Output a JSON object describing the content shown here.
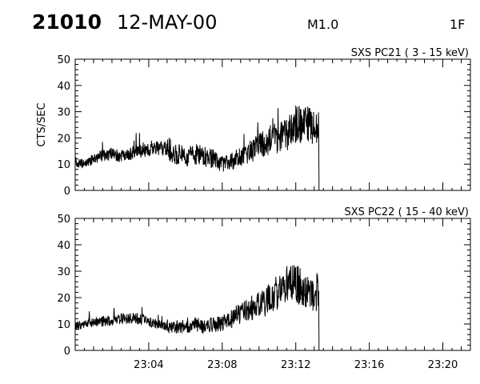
{
  "header": {
    "event_id": "21010",
    "date": "12-MAY-00",
    "flare_class": "M1.0",
    "frame": "1F"
  },
  "chart_data": [
    {
      "type": "line",
      "title": "SXS PC21  (  3 - 15 keV)",
      "ylabel": "CTS/SEC",
      "xlabel": "",
      "ylim": [
        0,
        50
      ],
      "yticks": [
        0,
        10,
        20,
        30,
        40,
        50
      ],
      "xlim": [
        "23:00:00",
        "23:21:30"
      ],
      "xticks": [
        "23:04",
        "23:08",
        "23:12",
        "23:16",
        "23:20"
      ],
      "series": [
        {
          "points": [
            [
              "23:00:00",
              11
            ],
            [
              "23:00:30",
              10
            ],
            [
              "23:01:00",
              12
            ],
            [
              "23:01:30",
              13
            ],
            [
              "23:02:00",
              14
            ],
            [
              "23:02:30",
              13
            ],
            [
              "23:03:00",
              14
            ],
            [
              "23:03:30",
              15
            ],
            [
              "23:04:00",
              15
            ],
            [
              "23:04:30",
              16
            ],
            [
              "23:05:00",
              16
            ],
            [
              "23:05:30",
              14
            ],
            [
              "23:06:00",
              13
            ],
            [
              "23:06:30",
              14
            ],
            [
              "23:07:00",
              13
            ],
            [
              "23:07:30",
              12
            ],
            [
              "23:08:00",
              10
            ],
            [
              "23:08:30",
              11
            ],
            [
              "23:09:00",
              13
            ],
            [
              "23:09:30",
              15
            ],
            [
              "23:10:00",
              17
            ],
            [
              "23:10:30",
              19
            ],
            [
              "23:11:00",
              20
            ],
            [
              "23:11:30",
              21
            ],
            [
              "23:12:00",
              25
            ],
            [
              "23:12:30",
              25
            ],
            [
              "23:13:00",
              24
            ],
            [
              "23:13:15",
              22
            ],
            [
              "23:13:16",
              0
            ]
          ]
        }
      ]
    },
    {
      "type": "line",
      "title": "SXS PC22  ( 15 - 40 keV)",
      "ylabel": "",
      "xlabel": "",
      "ylim": [
        0,
        50
      ],
      "yticks": [
        0,
        10,
        20,
        30,
        40,
        50
      ],
      "xlim": [
        "23:00:00",
        "23:21:30"
      ],
      "xticks": [
        "23:04",
        "23:08",
        "23:12",
        "23:16",
        "23:20"
      ],
      "series": [
        {
          "points": [
            [
              "23:00:00",
              9
            ],
            [
              "23:00:30",
              10
            ],
            [
              "23:01:00",
              11
            ],
            [
              "23:01:30",
              11
            ],
            [
              "23:02:00",
              11
            ],
            [
              "23:02:30",
              12
            ],
            [
              "23:03:00",
              12
            ],
            [
              "23:03:30",
              12
            ],
            [
              "23:04:00",
              11
            ],
            [
              "23:04:30",
              10
            ],
            [
              "23:05:00",
              9
            ],
            [
              "23:05:30",
              9
            ],
            [
              "23:06:00",
              9
            ],
            [
              "23:06:30",
              10
            ],
            [
              "23:07:00",
              9
            ],
            [
              "23:07:30",
              10
            ],
            [
              "23:08:00",
              10
            ],
            [
              "23:08:30",
              12
            ],
            [
              "23:09:00",
              14
            ],
            [
              "23:09:30",
              16
            ],
            [
              "23:10:00",
              17
            ],
            [
              "23:10:30",
              19
            ],
            [
              "23:11:00",
              22
            ],
            [
              "23:11:30",
              25
            ],
            [
              "23:12:00",
              26
            ],
            [
              "23:12:30",
              22
            ],
            [
              "23:13:00",
              20
            ],
            [
              "23:13:15",
              22
            ],
            [
              "23:13:16",
              0
            ]
          ]
        }
      ]
    }
  ]
}
